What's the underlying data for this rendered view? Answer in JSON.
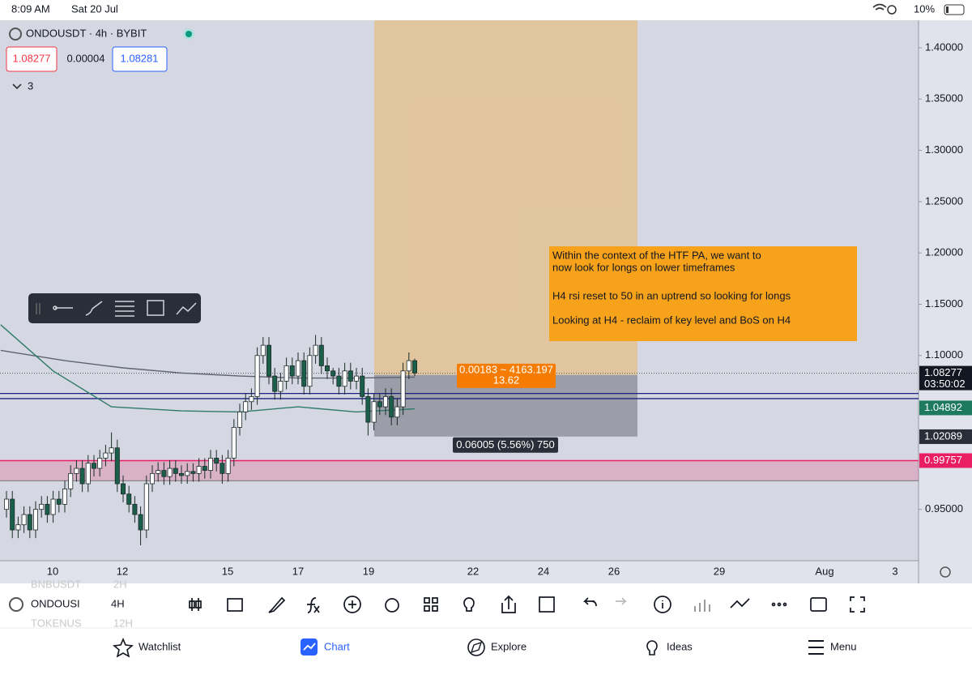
{
  "status_bar": {
    "time": "8:09 AM",
    "date": "Sat 20 Jul",
    "battery": "10%"
  },
  "header": {
    "symbol": "ONDOUSDT · 4h · BYBIT",
    "bid": "1.08277",
    "spread": "0.00004",
    "ask": "1.08281",
    "indicators": "3"
  },
  "chart": {
    "type": "candlestick",
    "ylim": [
      0.9,
      1.4268
    ],
    "yticks": [
      {
        "value": 1.4,
        "label": "1.40000"
      },
      {
        "value": 1.35,
        "label": "1.35000"
      },
      {
        "value": 1.3,
        "label": "1.30000"
      },
      {
        "value": 1.25,
        "label": "1.25000"
      },
      {
        "value": 1.2,
        "label": "1.20000"
      },
      {
        "value": 1.15,
        "label": "1.15000"
      },
      {
        "value": 1.1,
        "label": "1.10000"
      },
      {
        "value": 0.95,
        "label": "0.95000"
      }
    ],
    "x_labels": [
      "10",
      "12",
      "15",
      "17",
      "19",
      "22",
      "24",
      "26",
      "29",
      "Aug",
      "3"
    ],
    "up_color": "#ffffff",
    "down_color": "#1b5e4a",
    "candles": [
      [
        0.95,
        0.968,
        0.942,
        0.96
      ],
      [
        0.96,
        0.968,
        0.922,
        0.93
      ],
      [
        0.93,
        0.943,
        0.922,
        0.935
      ],
      [
        0.935,
        0.953,
        0.927,
        0.945
      ],
      [
        0.945,
        0.953,
        0.922,
        0.93
      ],
      [
        0.93,
        0.958,
        0.922,
        0.95
      ],
      [
        0.95,
        0.963,
        0.942,
        0.955
      ],
      [
        0.955,
        0.963,
        0.937,
        0.945
      ],
      [
        0.945,
        0.968,
        0.937,
        0.96
      ],
      [
        0.96,
        0.968,
        0.947,
        0.955
      ],
      [
        0.955,
        0.978,
        0.947,
        0.97
      ],
      [
        0.97,
        0.993,
        0.962,
        0.985
      ],
      [
        0.985,
        0.998,
        0.977,
        0.99
      ],
      [
        0.99,
        0.998,
        0.967,
        0.975
      ],
      [
        0.975,
        1.003,
        0.967,
        0.995
      ],
      [
        0.995,
        1.003,
        0.982,
        0.99
      ],
      [
        0.99,
        1.008,
        0.982,
        1.0
      ],
      [
        1.0,
        1.013,
        0.992,
        1.005
      ],
      [
        1.005,
        1.025,
        0.997,
        1.01
      ],
      [
        1.01,
        1.018,
        0.967,
        0.975
      ],
      [
        0.975,
        0.983,
        0.957,
        0.965
      ],
      [
        0.965,
        0.973,
        0.947,
        0.955
      ],
      [
        0.955,
        0.963,
        0.937,
        0.945
      ],
      [
        0.945,
        0.953,
        0.915,
        0.93
      ],
      [
        0.93,
        0.983,
        0.922,
        0.975
      ],
      [
        0.975,
        0.993,
        0.967,
        0.985
      ],
      [
        0.985,
        0.996,
        0.977,
        0.988
      ],
      [
        0.988,
        0.996,
        0.974,
        0.982
      ],
      [
        0.982,
        0.998,
        0.974,
        0.99
      ],
      [
        0.99,
        0.998,
        0.977,
        0.985
      ],
      [
        0.985,
        0.993,
        0.975,
        0.983
      ],
      [
        0.983,
        0.995,
        0.975,
        0.987
      ],
      [
        0.987,
        0.995,
        0.977,
        0.985
      ],
      [
        0.985,
        1.0,
        0.977,
        0.992
      ],
      [
        0.992,
        1.0,
        0.98,
        0.988
      ],
      [
        0.988,
        1.008,
        0.98,
        1.0
      ],
      [
        1.0,
        1.008,
        0.987,
        0.995
      ],
      [
        0.995,
        1.003,
        0.975,
        0.985
      ],
      [
        0.985,
        1.008,
        0.977,
        1.0
      ],
      [
        1.0,
        1.038,
        0.992,
        1.03
      ],
      [
        1.03,
        1.053,
        1.022,
        1.045
      ],
      [
        1.045,
        1.063,
        1.037,
        1.055
      ],
      [
        1.055,
        1.068,
        1.047,
        1.06
      ],
      [
        1.06,
        1.108,
        1.052,
        1.1
      ],
      [
        1.1,
        1.118,
        1.092,
        1.11
      ],
      [
        1.11,
        1.118,
        1.072,
        1.08
      ],
      [
        1.08,
        1.088,
        1.057,
        1.065
      ],
      [
        1.065,
        1.083,
        1.057,
        1.075
      ],
      [
        1.075,
        1.098,
        1.067,
        1.09
      ],
      [
        1.09,
        1.098,
        1.072,
        1.08
      ],
      [
        1.08,
        1.103,
        1.072,
        1.095
      ],
      [
        1.095,
        1.103,
        1.062,
        1.07
      ],
      [
        1.07,
        1.108,
        1.062,
        1.1
      ],
      [
        1.1,
        1.12,
        1.092,
        1.11
      ],
      [
        1.11,
        1.118,
        1.082,
        1.09
      ],
      [
        1.09,
        1.098,
        1.077,
        1.085
      ],
      [
        1.085,
        1.088,
        1.072,
        1.08
      ],
      [
        1.08,
        1.088,
        1.062,
        1.07
      ],
      [
        1.07,
        1.093,
        1.062,
        1.085
      ],
      [
        1.085,
        1.093,
        1.067,
        1.075
      ],
      [
        1.075,
        1.088,
        1.067,
        1.08
      ],
      [
        1.08,
        1.088,
        1.052,
        1.06
      ],
      [
        1.06,
        1.068,
        1.022,
        1.035
      ],
      [
        1.035,
        1.063,
        1.027,
        1.055
      ],
      [
        1.055,
        1.063,
        1.042,
        1.05
      ],
      [
        1.05,
        1.068,
        1.042,
        1.06
      ],
      [
        1.06,
        1.068,
        1.032,
        1.04
      ],
      [
        1.04,
        1.058,
        1.032,
        1.05
      ],
      [
        1.05,
        1.093,
        1.042,
        1.085
      ],
      [
        1.085,
        1.103,
        1.077,
        1.095
      ],
      [
        1.095,
        1.097,
        1.08,
        1.083
      ]
    ],
    "moving_averages": [
      {
        "color": "#5d6470",
        "x": [
          -1,
          10,
          20,
          30,
          40,
          50,
          60,
          70
        ],
        "values": [
          1.105,
          1.095,
          1.088,
          1.083,
          1.08,
          1.078,
          1.078,
          1.079
        ]
      },
      {
        "color": "#2f7a68",
        "x": [
          -1,
          8,
          18,
          30,
          40,
          50,
          60,
          70
        ],
        "values": [
          1.13,
          1.085,
          1.05,
          1.046,
          1.045,
          1.05,
          1.045,
          1.048
        ]
      }
    ],
    "horizontal_lines": [
      {
        "value": 1.063,
        "color": "#1a237e"
      },
      {
        "value": 1.058,
        "color": "#1a237e"
      }
    ],
    "zone": {
      "top": 0.99757,
      "bottom": 0.978,
      "color": "#e91e63"
    },
    "position": {
      "target": 1.4268,
      "entry": 1.081,
      "stop": 1.021,
      "pnl": "0.00183 ~ 4163.197",
      "qty": "13.62",
      "risk": "0.06005 (5.56%) 750"
    },
    "price_labels": [
      {
        "value": 1.08277,
        "timer": "03:50:02",
        "color": "#131722"
      },
      {
        "value": 1.04892,
        "color": "#1e7a5f"
      },
      {
        "value": 1.02089,
        "color": "#2a2e39"
      },
      {
        "value": 0.99757,
        "color": "#e91e63"
      }
    ],
    "note": [
      "Within the context of the HTF PA, we want to",
      "now look for longs on lower timeframes",
      "H4 rsi reset to 50 in an uptrend so looking for longs",
      "Looking at H4 - reclaim of key level and BoS on H4"
    ]
  },
  "toolbar": {
    "symbol": "ONDOUSI",
    "interval": "4H",
    "prev_symbol": "BNBUSDT",
    "prev_interval": "2H",
    "next_symbol": "TOKENUS",
    "next_interval": "12H"
  },
  "nav": [
    "Watchlist",
    "Chart",
    "Explore",
    "Ideas",
    "Menu"
  ]
}
